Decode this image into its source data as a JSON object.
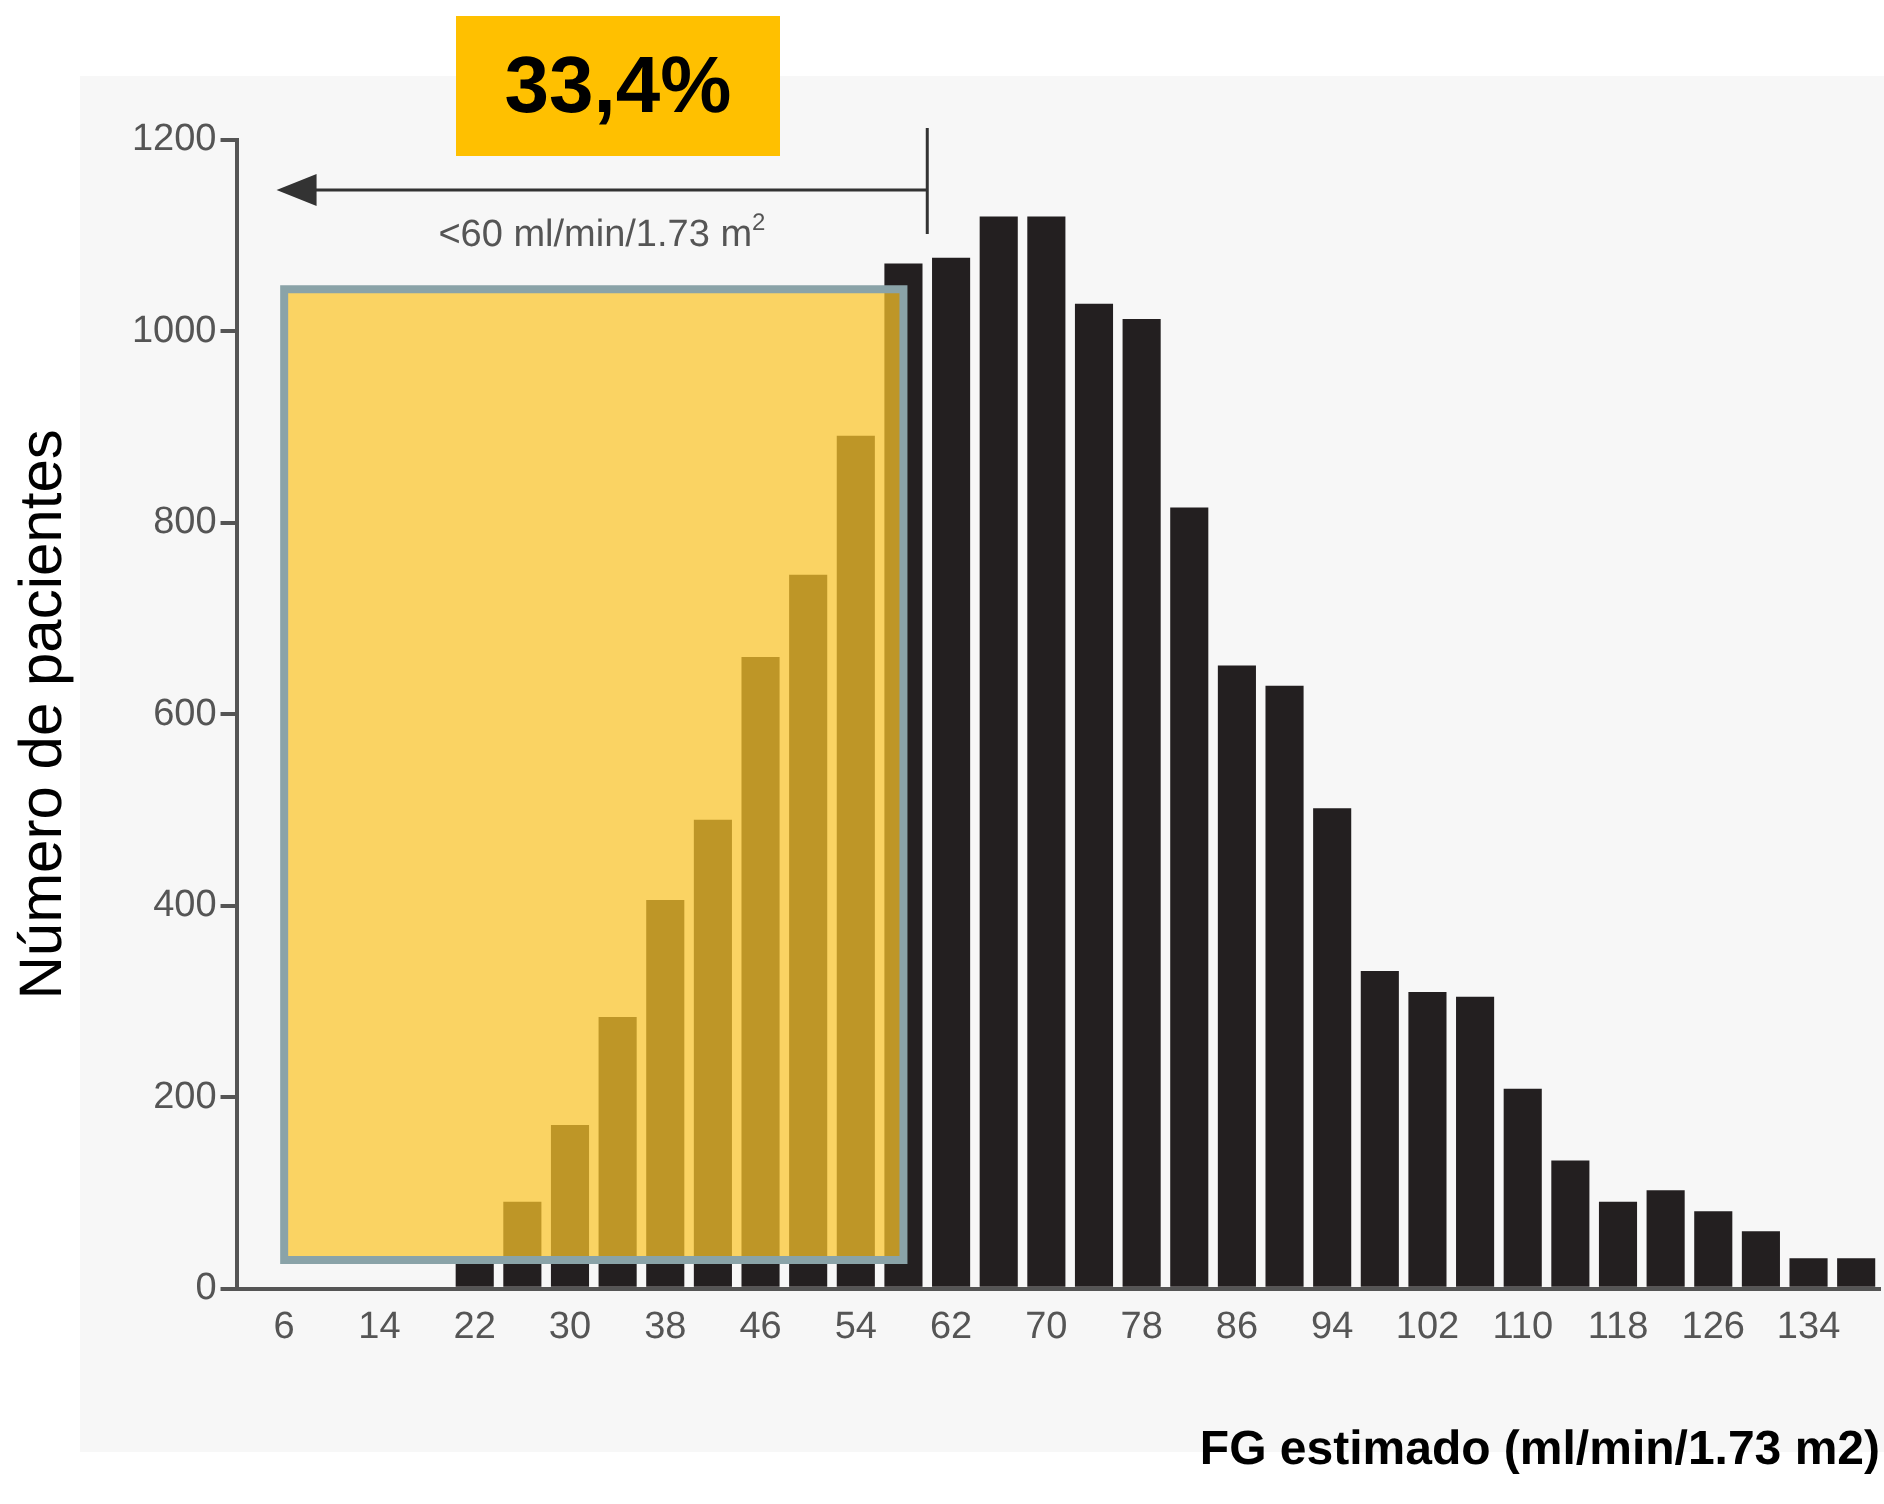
{
  "chart_data": {
    "type": "histogram",
    "xlabel": "FG estimado (ml/min/1.73 m2)",
    "ylabel": "Número de pacientes",
    "bins": [
      4,
      8,
      12,
      16,
      20,
      24,
      28,
      32,
      36,
      40,
      44,
      48,
      52,
      56,
      60,
      64,
      68,
      72,
      76,
      80,
      84,
      88,
      92,
      96,
      100,
      104,
      108,
      112,
      116,
      120,
      124,
      128,
      132,
      136,
      140
    ],
    "values": [
      0,
      0,
      0,
      0,
      30,
      91,
      171,
      284,
      406,
      490,
      660,
      746,
      891,
      1071,
      1077,
      1120,
      1120,
      1029,
      1013,
      816,
      651,
      630,
      502,
      332,
      310,
      305,
      209,
      134,
      91,
      103,
      81,
      60,
      32,
      32
    ],
    "color": "#231f20",
    "xlim": [
      2,
      140
    ],
    "xticks": [
      6,
      14,
      22,
      30,
      38,
      46,
      54,
      62,
      70,
      78,
      86,
      94,
      102,
      110,
      118,
      126,
      134
    ],
    "ylim": [
      0,
      1200
    ],
    "yticks": [
      0,
      200,
      400,
      600,
      800,
      1000,
      1200
    ],
    "bands": [
      {
        "axis": "x",
        "from": 6,
        "to": 58,
        "color": "#fbc52a"
      }
    ],
    "ref_lines": [
      {
        "axis": "x",
        "value": 60,
        "label": "<60 ml/min/1.73 m$^{2}$"
      }
    ],
    "annotations": [
      "33,4%"
    ]
  }
}
